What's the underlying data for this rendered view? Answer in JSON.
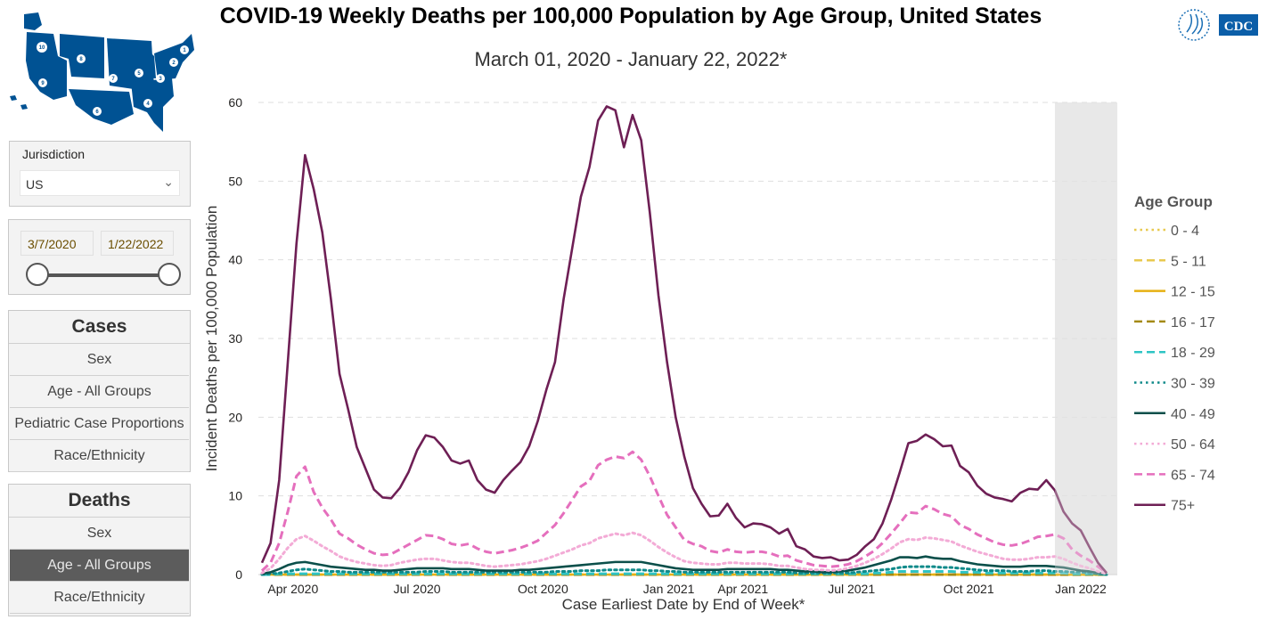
{
  "map": {
    "region_numbers": [
      "1",
      "2",
      "3",
      "4",
      "5",
      "6",
      "7",
      "8",
      "9",
      "10"
    ],
    "color": "#005293"
  },
  "logo": {
    "text": "CDC"
  },
  "jurisdiction": {
    "label": "Jurisdiction",
    "value": "US"
  },
  "date_range": {
    "start": "3/7/2020",
    "end": "1/22/2022"
  },
  "cases": {
    "header": "Cases",
    "items": [
      "Sex",
      "Age - All Groups",
      "Pediatric Case Proportions",
      "Race/Ethnicity"
    ]
  },
  "deaths": {
    "header": "Deaths",
    "items": [
      "Sex",
      "Age - All Groups",
      "Race/Ethnicity"
    ],
    "active_index": 1
  },
  "chart_data": {
    "type": "line",
    "title": "COVID-19 Weekly Deaths per 100,000 Population by Age Group, United States",
    "subtitle": "March 01, 2020 - January 22, 2022*",
    "xlabel": "Case Earliest Date by End of Week*",
    "ylabel": "Incident Deaths per 100,000 Population",
    "ylim": [
      0,
      60
    ],
    "yticks": [
      0,
      10,
      20,
      30,
      40,
      50,
      60
    ],
    "grid": true,
    "x_unit": "week index from week ending 3/7/2020",
    "xlim": [
      0,
      99
    ],
    "xticks": [
      {
        "label": "Apr 2020",
        "week": 3.6
      },
      {
        "label": "Jul 2020",
        "week": 18
      },
      {
        "label": "Oct 2020",
        "week": 32.6
      },
      {
        "label": "Jan 2021",
        "week": 47.2
      },
      {
        "label": "Apr 2021",
        "week": 55.8
      },
      {
        "label": "Jul 2021",
        "week": 68.4
      },
      {
        "label": "Oct 2021",
        "week": 82
      },
      {
        "label": "Jan 2022",
        "week": 95
      }
    ],
    "incomplete_data_from_week": 92,
    "legend": {
      "title": "Age Group",
      "position": "right"
    },
    "series": [
      {
        "name": "0 - 4",
        "color": "#e8c94f",
        "style": "dotted",
        "values": [
          0,
          0,
          0,
          0,
          0,
          0,
          0,
          0,
          0,
          0,
          0,
          0,
          0,
          0,
          0,
          0,
          0,
          0,
          0,
          0,
          0,
          0,
          0,
          0,
          0,
          0,
          0,
          0,
          0,
          0,
          0,
          0,
          0,
          0,
          0,
          0,
          0,
          0,
          0,
          0,
          0,
          0,
          0,
          0,
          0,
          0,
          0,
          0,
          0,
          0,
          0,
          0,
          0,
          0,
          0,
          0,
          0,
          0,
          0,
          0,
          0,
          0,
          0,
          0,
          0,
          0,
          0,
          0,
          0,
          0,
          0,
          0,
          0,
          0,
          0,
          0,
          0,
          0,
          0,
          0,
          0,
          0,
          0,
          0,
          0,
          0,
          0,
          0,
          0,
          0,
          0,
          0,
          0,
          0,
          0,
          0,
          0,
          0,
          0
        ]
      },
      {
        "name": "5 - 11",
        "color": "#e8c94f",
        "style": "dashed",
        "values": [
          0,
          0,
          0,
          0,
          0,
          0,
          0,
          0,
          0,
          0,
          0,
          0,
          0,
          0,
          0,
          0,
          0,
          0,
          0,
          0,
          0,
          0,
          0,
          0,
          0,
          0,
          0,
          0,
          0,
          0,
          0,
          0,
          0,
          0,
          0,
          0,
          0,
          0,
          0,
          0,
          0,
          0,
          0,
          0,
          0,
          0,
          0,
          0,
          0,
          0,
          0,
          0,
          0,
          0,
          0,
          0,
          0,
          0,
          0,
          0,
          0,
          0,
          0,
          0,
          0,
          0,
          0,
          0,
          0,
          0,
          0,
          0,
          0,
          0,
          0,
          0,
          0,
          0,
          0,
          0,
          0,
          0,
          0,
          0,
          0,
          0,
          0,
          0,
          0,
          0,
          0,
          0,
          0,
          0,
          0,
          0,
          0,
          0,
          0
        ]
      },
      {
        "name": "12 - 15",
        "color": "#e6b012",
        "style": "solid",
        "values": [
          0,
          0,
          0,
          0,
          0,
          0,
          0,
          0,
          0,
          0,
          0,
          0,
          0,
          0,
          0,
          0,
          0,
          0,
          0,
          0,
          0,
          0,
          0,
          0,
          0,
          0,
          0,
          0,
          0,
          0,
          0,
          0,
          0,
          0,
          0,
          0,
          0,
          0,
          0,
          0,
          0,
          0,
          0,
          0,
          0,
          0,
          0,
          0,
          0,
          0,
          0,
          0,
          0,
          0,
          0,
          0,
          0,
          0,
          0,
          0,
          0,
          0,
          0,
          0,
          0,
          0,
          0,
          0,
          0,
          0,
          0,
          0,
          0,
          0,
          0,
          0,
          0,
          0,
          0,
          0,
          0,
          0,
          0,
          0,
          0,
          0,
          0,
          0,
          0,
          0,
          0,
          0,
          0,
          0,
          0,
          0,
          0,
          0,
          0
        ]
      },
      {
        "name": "16 - 17",
        "color": "#a48a14",
        "style": "dashed",
        "values": [
          0,
          0,
          0,
          0,
          0,
          0,
          0,
          0,
          0,
          0,
          0,
          0,
          0,
          0,
          0,
          0,
          0,
          0,
          0,
          0,
          0,
          0,
          0,
          0,
          0,
          0,
          0,
          0,
          0,
          0,
          0,
          0,
          0,
          0,
          0,
          0,
          0,
          0,
          0,
          0,
          0,
          0,
          0,
          0,
          0,
          0,
          0,
          0,
          0,
          0,
          0,
          0,
          0,
          0,
          0,
          0,
          0,
          0,
          0,
          0,
          0,
          0,
          0,
          0,
          0,
          0,
          0,
          0,
          0,
          0,
          0,
          0,
          0,
          0,
          0,
          0,
          0,
          0,
          0,
          0,
          0,
          0,
          0,
          0,
          0,
          0,
          0,
          0,
          0,
          0,
          0,
          0,
          0,
          0,
          0,
          0,
          0,
          0,
          0
        ]
      },
      {
        "name": "18 - 29",
        "color": "#2ec4c4",
        "style": "dashed",
        "values": [
          0,
          0,
          0.1,
          0.1,
          0.1,
          0.1,
          0.1,
          0.1,
          0.1,
          0.1,
          0.1,
          0.1,
          0.1,
          0.1,
          0.1,
          0.1,
          0.1,
          0.1,
          0.1,
          0.1,
          0.1,
          0.1,
          0.1,
          0.1,
          0.1,
          0.1,
          0.1,
          0.1,
          0.1,
          0.1,
          0.1,
          0.1,
          0.1,
          0.1,
          0.1,
          0.1,
          0.1,
          0.1,
          0.1,
          0.1,
          0.1,
          0.1,
          0.1,
          0.1,
          0.1,
          0.1,
          0.1,
          0.1,
          0.1,
          0.1,
          0.1,
          0.1,
          0.1,
          0.1,
          0.1,
          0.1,
          0.1,
          0.1,
          0.1,
          0.1,
          0.1,
          0.1,
          0.1,
          0.1,
          0.1,
          0.1,
          0.1,
          0.1,
          0.1,
          0.1,
          0.1,
          0.2,
          0.2,
          0.3,
          0.4,
          0.4,
          0.4,
          0.4,
          0.4,
          0.4,
          0.4,
          0.3,
          0.3,
          0.3,
          0.2,
          0.2,
          0.2,
          0.2,
          0.2,
          0.2,
          0.2,
          0.2,
          0.2,
          0.2,
          0.1,
          0.1,
          0.1,
          0.1,
          0
        ]
      },
      {
        "name": "30 - 39",
        "color": "#0f8a8a",
        "style": "dotted",
        "values": [
          0,
          0.1,
          0.2,
          0.4,
          0.6,
          0.7,
          0.6,
          0.5,
          0.4,
          0.4,
          0.3,
          0.3,
          0.3,
          0.3,
          0.3,
          0.3,
          0.3,
          0.3,
          0.3,
          0.4,
          0.4,
          0.4,
          0.3,
          0.3,
          0.3,
          0.3,
          0.3,
          0.3,
          0.3,
          0.3,
          0.3,
          0.3,
          0.3,
          0.3,
          0.4,
          0.4,
          0.4,
          0.5,
          0.5,
          0.5,
          0.6,
          0.6,
          0.6,
          0.6,
          0.6,
          0.5,
          0.5,
          0.4,
          0.4,
          0.3,
          0.3,
          0.3,
          0.3,
          0.3,
          0.3,
          0.3,
          0.3,
          0.3,
          0.3,
          0.3,
          0.3,
          0.3,
          0.2,
          0.2,
          0.2,
          0.2,
          0.2,
          0.2,
          0.2,
          0.3,
          0.4,
          0.5,
          0.6,
          0.7,
          0.9,
          1.0,
          1.0,
          1.0,
          1.0,
          0.9,
          0.9,
          0.8,
          0.7,
          0.6,
          0.5,
          0.5,
          0.5,
          0.4,
          0.4,
          0.4,
          0.5,
          0.5,
          0.4,
          0.4,
          0.3,
          0.3,
          0.2,
          0.1,
          0
        ]
      },
      {
        "name": "40 - 49",
        "color": "#0b4f4a",
        "style": "solid",
        "values": [
          0.1,
          0.3,
          0.7,
          1.2,
          1.5,
          1.6,
          1.4,
          1.2,
          1.0,
          0.9,
          0.8,
          0.7,
          0.6,
          0.6,
          0.5,
          0.5,
          0.6,
          0.7,
          0.8,
          0.8,
          0.8,
          0.8,
          0.7,
          0.7,
          0.7,
          0.6,
          0.5,
          0.5,
          0.5,
          0.5,
          0.6,
          0.6,
          0.7,
          0.8,
          0.9,
          1.0,
          1.1,
          1.2,
          1.3,
          1.4,
          1.5,
          1.6,
          1.6,
          1.6,
          1.6,
          1.4,
          1.2,
          1.0,
          0.8,
          0.7,
          0.6,
          0.6,
          0.6,
          0.6,
          0.7,
          0.7,
          0.7,
          0.7,
          0.7,
          0.7,
          0.6,
          0.6,
          0.5,
          0.4,
          0.4,
          0.3,
          0.3,
          0.4,
          0.5,
          0.7,
          0.9,
          1.2,
          1.5,
          1.8,
          2.2,
          2.2,
          2.1,
          2.3,
          2.1,
          2.0,
          2.0,
          1.7,
          1.5,
          1.3,
          1.2,
          1.1,
          1.0,
          1.0,
          1.0,
          1.1,
          1.1,
          1.1,
          1.0,
          0.9,
          0.7,
          0.5,
          0.4,
          0.2,
          0.1
        ]
      },
      {
        "name": "50 - 64",
        "color": "#f3abd6",
        "style": "dotted",
        "values": [
          0.2,
          0.8,
          2,
          3.4,
          4.5,
          4.9,
          4.3,
          3.6,
          3,
          2.3,
          1.9,
          1.6,
          1.4,
          1.2,
          1.1,
          1.2,
          1.5,
          1.7,
          1.9,
          2.0,
          2.0,
          1.8,
          1.6,
          1.5,
          1.5,
          1.3,
          1.1,
          1.0,
          1.1,
          1.2,
          1.3,
          1.5,
          1.7,
          2.0,
          2.4,
          2.8,
          3.2,
          3.7,
          4.0,
          4.6,
          4.9,
          5.2,
          5.0,
          5.3,
          5.0,
          4.3,
          3.5,
          2.8,
          2.2,
          1.7,
          1.5,
          1.4,
          1.3,
          1.3,
          1.5,
          1.5,
          1.4,
          1.4,
          1.4,
          1.3,
          1.1,
          1.1,
          0.9,
          0.7,
          0.6,
          0.6,
          0.5,
          0.6,
          0.8,
          1.1,
          1.5,
          2,
          2.6,
          3.3,
          4.1,
          4.5,
          4.4,
          4.7,
          4.6,
          4.4,
          4.2,
          3.7,
          3.3,
          2.9,
          2.6,
          2.3,
          2.0,
          1.9,
          1.9,
          2.0,
          2.2,
          2.2,
          2.3,
          2.0,
          1.5,
          1.1,
          0.8,
          0.4,
          0.1
        ]
      },
      {
        "name": "65 - 74",
        "color": "#e56fbd",
        "style": "dashed",
        "values": [
          0.5,
          1.5,
          4,
          8,
          12.5,
          13.7,
          10.5,
          8.5,
          7,
          5.2,
          4.6,
          3.8,
          3.2,
          2.7,
          2.5,
          2.6,
          3.2,
          3.8,
          4.4,
          5.0,
          4.9,
          4.5,
          3.9,
          3.7,
          3.9,
          3.3,
          2.9,
          2.7,
          2.9,
          3.1,
          3.4,
          3.8,
          4.3,
          5.3,
          6.3,
          7.8,
          9.5,
          11.2,
          11.9,
          13.9,
          14.6,
          15,
          14.8,
          15.6,
          14.6,
          12.5,
          10,
          7.6,
          6,
          4.4,
          3.9,
          3.6,
          3.0,
          2.8,
          3.2,
          2.9,
          2.8,
          2.9,
          2.9,
          2.7,
          2.3,
          2.4,
          1.8,
          1.5,
          1.2,
          1.1,
          1.0,
          1.1,
          1.3,
          1.7,
          2.3,
          3,
          4,
          5.2,
          6.5,
          7.9,
          7.8,
          8.7,
          8.3,
          7.7,
          7.4,
          6.3,
          5.8,
          5.1,
          4.6,
          4.1,
          3.8,
          3.7,
          3.9,
          4.3,
          4.8,
          4.9,
          5.1,
          4.6,
          3.2,
          2.4,
          1.8,
          1.0,
          0.2
        ]
      },
      {
        "name": "75+",
        "color": "#6e1f55",
        "style": "solid",
        "values": [
          1.5,
          4,
          12,
          27,
          42,
          53.3,
          49,
          43.5,
          35,
          25.5,
          21,
          16.2,
          13.5,
          10.8,
          9.8,
          9.7,
          11,
          13,
          15.8,
          17.7,
          17.4,
          16.2,
          14.5,
          14.1,
          14.5,
          12,
          10.8,
          10.4,
          12,
          13.2,
          14.3,
          16.3,
          19.5,
          23.5,
          27,
          35,
          41.5,
          48,
          51.8,
          57.7,
          59.5,
          59,
          54.3,
          58.4,
          55.2,
          46,
          35.5,
          27,
          20,
          15,
          11,
          9,
          7.4,
          7.5,
          9,
          7.2,
          6,
          6.5,
          6.4,
          6,
          5.2,
          5.8,
          3.6,
          3.2,
          2.3,
          2.1,
          2.2,
          1.8,
          1.9,
          2.5,
          3.6,
          4.5,
          6.5,
          9.5,
          13,
          16.7,
          17,
          17.8,
          17.2,
          16.3,
          16.4,
          13.8,
          13,
          11.3,
          10.3,
          9.8,
          9.6,
          9.3,
          10.4,
          10.9,
          10.8,
          12,
          10.7,
          8,
          6.5,
          5.6,
          3.5,
          1.5,
          0.2
        ]
      }
    ]
  }
}
